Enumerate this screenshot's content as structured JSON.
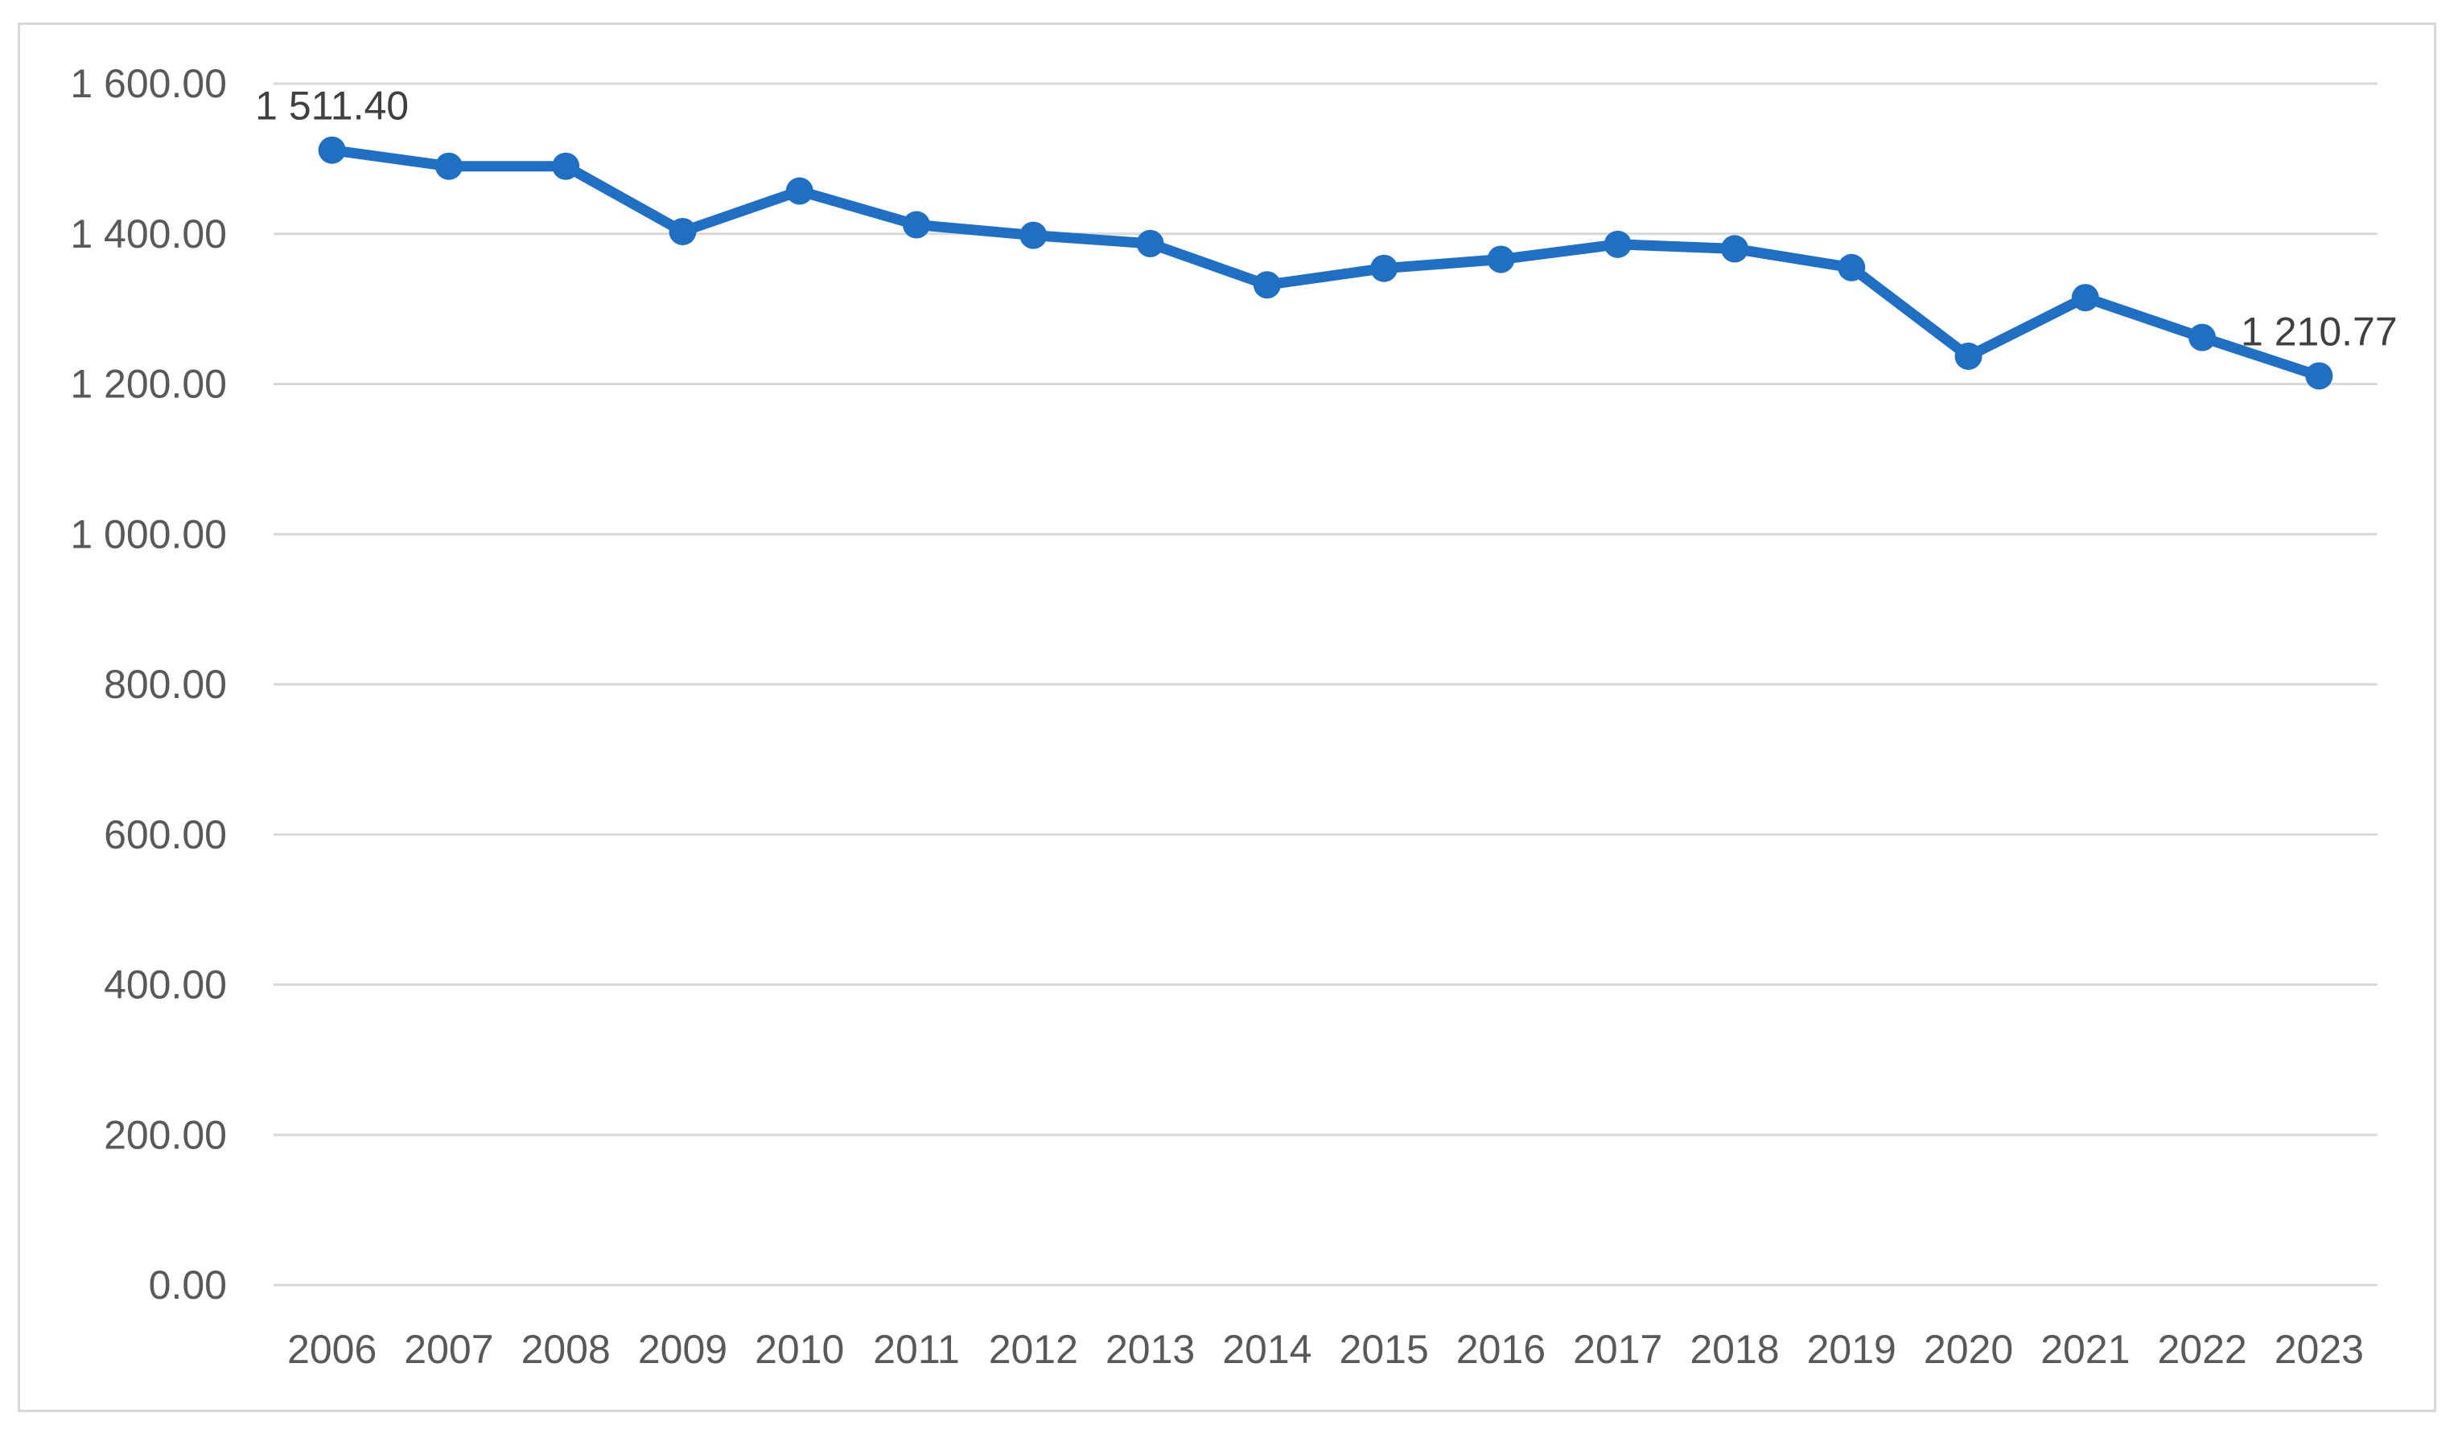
{
  "chart_data": {
    "type": "line",
    "title": "",
    "xlabel": "",
    "ylabel": "",
    "x": [
      "2006",
      "2007",
      "2008",
      "2009",
      "2010",
      "2011",
      "2012",
      "2013",
      "2014",
      "2015",
      "2016",
      "2017",
      "2018",
      "2019",
      "2020",
      "2021",
      "2022",
      "2023"
    ],
    "series": [
      {
        "values": [
          1511.4,
          1490,
          1490,
          1403,
          1457,
          1412,
          1398,
          1387,
          1332,
          1354,
          1366,
          1386,
          1380,
          1355,
          1237,
          1315,
          1262,
          1210.77
        ],
        "color": "#1f6fc5"
      }
    ],
    "ylim": [
      0,
      1600
    ],
    "yticks": [
      0,
      200,
      400,
      600,
      800,
      1000,
      1200,
      1400,
      1600
    ],
    "ytick_labels": [
      "0.00",
      "200.00",
      "400.00",
      "600.00",
      "800.00",
      "1 000.00",
      "1 200.00",
      "1 400.00",
      "1 600.00"
    ],
    "data_labels": [
      {
        "index": 0,
        "text": "1 511.40"
      },
      {
        "index": 17,
        "text": "1 210.77"
      }
    ],
    "grid": true,
    "legend": "none",
    "gridline_color": "#d9d9d9",
    "axis_text_color": "#595959"
  }
}
